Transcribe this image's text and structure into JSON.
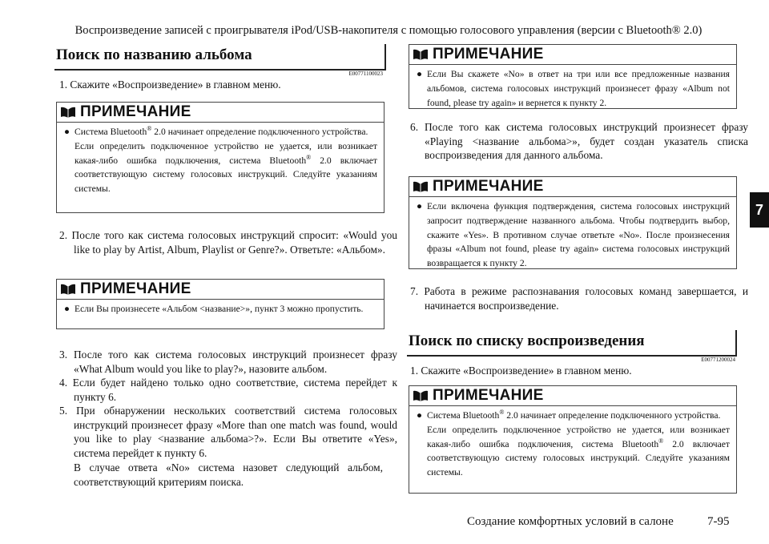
{
  "header": {
    "title": "Воспроизведение записей с проигрывателя iPod/USB-накопителя с помощью голосового управления (версии с Bluetooth® 2.0)"
  },
  "chapter_tab": "7",
  "note_label": "ПРИМЕЧАНИЕ",
  "left": {
    "heading": "Поиск по названию альбома",
    "code": "E00771100023",
    "step1": "1. Скажите «Воспроизведение» в главном меню.",
    "note1": {
      "p1a": "Система Bluetooth",
      "sup": "®",
      "p1b": " 2.0 начинает определение подключенного устройства.",
      "p2a": "Если определить подключенное устройство не удается, или возникает какая-либо ошибка подключения, система Bluetooth",
      "p2b": " 2.0 включает соответствующую систему голосовых инструкций. Следуйте указаниям системы."
    },
    "step2": "2. После того как система голосовых инструкций спросит: «Would you like to play by Artist, Album, Playlist or Genre?». Ответьте: «Альбом».",
    "note2": "Если Вы произнесете «Альбом <название>», пункт 3 можно пропустить.",
    "step3": "3. После того как система голосовых инструкций произнесет фразу «What Album would you like to play?», назовите альбом.",
    "step4": "4. Если будет найдено только одно соответствие, система перейдет к пункту 6.",
    "step5a": "5. При обнаружении нескольких соответствий система голосовых инструкций произнесет фразу «More than one match was found, would you like to play <название альбома>?». Если Вы ответите «Yes», система перейдет к пункту 6.",
    "step5b": "В случае ответа «No» система назовет следующий альбом, соответствующий критериям поиска."
  },
  "right": {
    "note3": "Если Вы скажете «No» в ответ на три или все предложенные названия альбомов, система голосовых инструкций произнесет фразу «Album not found, please try again» и вернется к пункту 2.",
    "step6": "6. После того как система голосовых инструкций произнесет фразу «Playing <название альбома>», будет создан указатель списка воспроизведения для данного альбома.",
    "note4": "Если включена функция подтверждения, система голосовых инструкций запросит подтверждение названного альбома. Чтобы подтвердить выбор, скажите «Yes». В противном случае ответьте «No». После произнесения фразы «Album not found, please try again» система голосовых инструкций возвращается к пункту 2.",
    "step7": "7. Работа в режиме распознавания голосовых команд завершается, и начинается воспроизведение.",
    "heading": "Поиск по списку воспроизведения",
    "code": "E00771200024",
    "step1": "1. Скажите «Воспроизведение» в главном меню.",
    "note5": {
      "p1a": "Система Bluetooth",
      "sup": "®",
      "p1b": " 2.0 начинает определение подключенного устройства.",
      "p2a": "Если определить подключенное устройство не удается, или возникает какая-либо ошибка подключения, система Bluetooth",
      "p2b": " 2.0 включает соответствующую систему голосовых инструкций. Следуйте указаниям системы."
    }
  },
  "footer": {
    "section": "Создание комфортных условий в салоне",
    "page": "7-95"
  }
}
